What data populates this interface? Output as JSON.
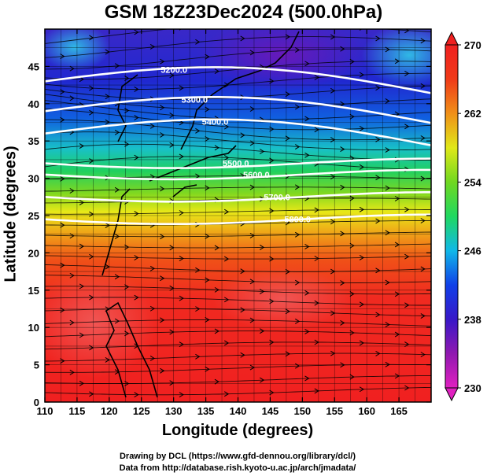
{
  "title": "GSM 18Z23Dec2024 (500.0hPa)",
  "x_axis": {
    "label": "Longitude (degrees)",
    "ticks": [
      110,
      115,
      120,
      125,
      130,
      135,
      140,
      145,
      150,
      155,
      160,
      165
    ],
    "range": [
      110,
      170
    ]
  },
  "y_axis": {
    "label": "Latitude  (degrees)",
    "ticks": [
      0,
      5,
      10,
      15,
      20,
      25,
      30,
      35,
      40,
      45
    ],
    "range": [
      0,
      50
    ]
  },
  "colorbar": {
    "labels": [
      230,
      238,
      246,
      254,
      262,
      270
    ],
    "min": 230,
    "max": 270,
    "colors": [
      "#e020c0",
      "#9018b0",
      "#3818c8",
      "#1040e8",
      "#10b8e8",
      "#20d860",
      "#70d820",
      "#e0e818",
      "#f09018",
      "#f03a18",
      "#f02020"
    ]
  },
  "contours": [
    {
      "label": "5200.0",
      "lat": 43.0
    },
    {
      "label": "5300.0",
      "lat": 39.0
    },
    {
      "label": "5400.0",
      "lat": 36.0
    },
    {
      "label": "5500.0",
      "lat": 32.0
    },
    {
      "label": "5600.0",
      "lat": 30.5
    },
    {
      "label": "5700.0",
      "lat": 27.5
    },
    {
      "label": "5800.0",
      "lat": 24.5
    }
  ],
  "credits": [
    "Drawing by DCL (https://www.gfd-dennou.org/library/dcl/)",
    "Data from http://database.rish.kyoto-u.ac.jp/arch/jmadata/"
  ]
}
